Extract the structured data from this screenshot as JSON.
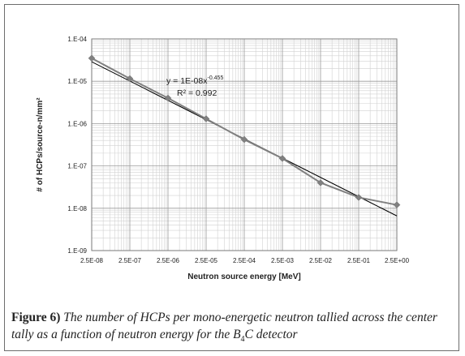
{
  "chart_data": {
    "type": "scatter",
    "xlabel": "Neutron source energy [MeV]",
    "ylabel": "# of HCPs/source-n/mm²",
    "xscale": "log",
    "yscale": "log",
    "xlim": [
      2.5e-08,
      2.5
    ],
    "ylim": [
      1e-09,
      0.0001
    ],
    "xtick_labels": [
      "2.5E-08",
      "2.5E-07",
      "2.5E-06",
      "2.5E-05",
      "2.5E-04",
      "2.5E-03",
      "2.5E-02",
      "2.5E-01",
      "2.5E+00"
    ],
    "ytick_labels": [
      "1.E-09",
      "1.E-08",
      "1.E-07",
      "1.E-06",
      "1.E-05",
      "1.E-04"
    ],
    "grid": true,
    "series": [
      {
        "x": [
          2.5e-08,
          2.5e-07,
          2.5e-06,
          2.5e-05,
          0.00025,
          0.0025,
          0.025,
          0.25,
          2.5
        ],
        "values": [
          3.5e-05,
          1.15e-05,
          4e-06,
          1.3e-06,
          4.2e-07,
          1.5e-07,
          4e-08,
          1.8e-08,
          1.2e-08
        ],
        "color": "#808080",
        "marker": "diamond"
      }
    ],
    "trendline": {
      "equation": "y = 1E-08x",
      "exponent": "-0.455",
      "r_squared": "R² = 0.992",
      "coefficient": 1e-08,
      "power": -0.455,
      "color": "#000000"
    }
  },
  "caption": {
    "label": "Figure 6)",
    "text_before": " The number of HCPs per mono-energetic neutron tallied across the center tally as a function of neutron energy for the B",
    "subscript": "4",
    "text_after": "C detector"
  }
}
